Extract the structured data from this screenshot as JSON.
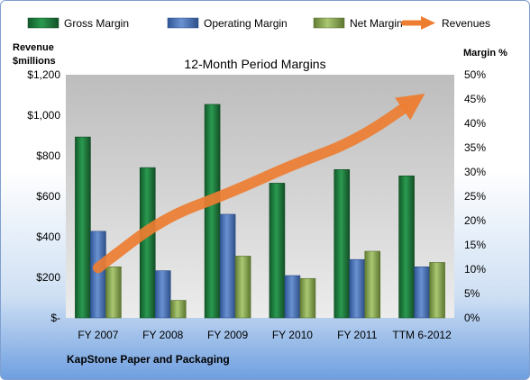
{
  "chart_data": {
    "type": "bar",
    "title": "12-Month Period Margins",
    "company": "KapStone Paper and Packaging",
    "categories": [
      "FY 2007",
      "FY 2008",
      "FY 2009",
      "FY 2010",
      "FY 2011",
      "TTM 6-2012"
    ],
    "y_left": {
      "label_line1": "Revenue",
      "label_line2": "$millions",
      "ticks": [
        "$-",
        "$200",
        "$400",
        "$600",
        "$800",
        "$1,000",
        "$1,200"
      ],
      "ylim": [
        0,
        1200
      ]
    },
    "y_right": {
      "label": "Margin %",
      "ticks": [
        "0%",
        "5%",
        "10%",
        "15%",
        "20%",
        "25%",
        "30%",
        "35%",
        "40%",
        "45%",
        "50%"
      ],
      "ylim": [
        0,
        50
      ]
    },
    "series": [
      {
        "name": "Gross Margin",
        "axis": "right",
        "color": "#1e7a3e",
        "values": [
          37.2,
          30.9,
          43.9,
          27.7,
          30.5,
          29.2
        ]
      },
      {
        "name": "Operating Margin",
        "axis": "right",
        "color": "#4a72b5",
        "values": [
          17.8,
          9.7,
          21.3,
          8.7,
          12.0,
          10.5
        ]
      },
      {
        "name": "Net Margin",
        "axis": "right",
        "color": "#8fae5a",
        "values": [
          10.5,
          3.6,
          12.7,
          8.1,
          13.7,
          11.4
        ]
      },
      {
        "name": "Revenues",
        "type": "arrow",
        "axis": "right",
        "color": "#ed7d31",
        "values": [
          10.3,
          20.5,
          25.5,
          31.5,
          36.5,
          45.7
        ]
      }
    ],
    "legend_position": "top",
    "grid": false
  }
}
